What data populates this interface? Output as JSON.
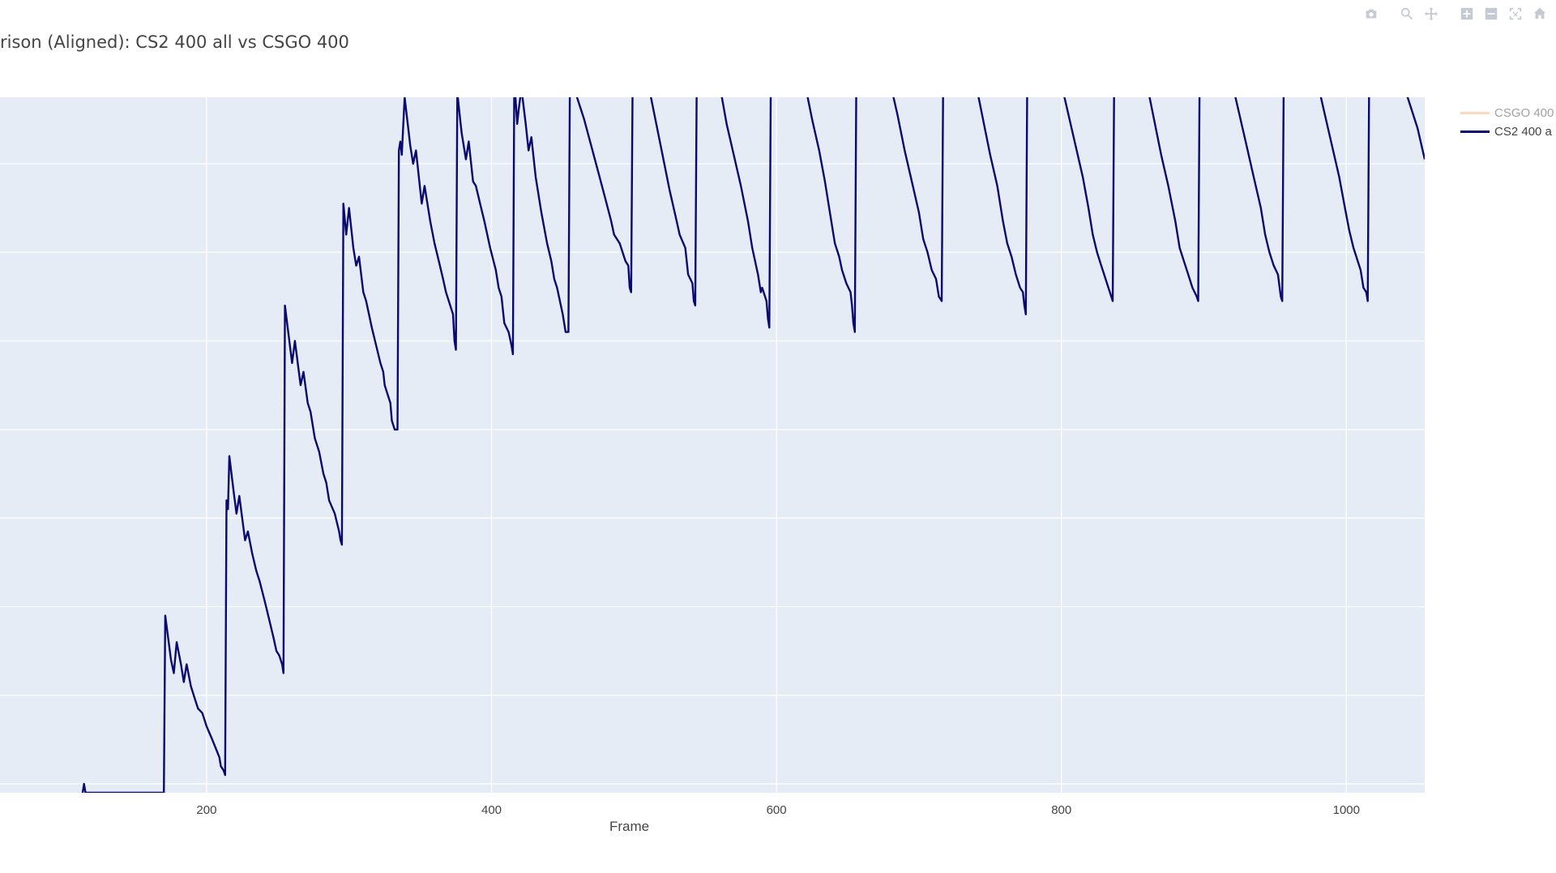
{
  "title": "rison (Aligned): CS2 400 all vs CSGO 400",
  "modebar": {
    "icons": [
      "camera-icon",
      "zoom-icon",
      "pan-icon",
      "zoom-in-icon",
      "zoom-out-icon",
      "autoscale-icon",
      "reset-axes-icon"
    ]
  },
  "legend": {
    "placement": "right",
    "items": [
      {
        "label": "CSGO 400",
        "color": "#f5b783",
        "dimmed": true
      },
      {
        "label": "CS2 400 a",
        "color": "#0a0a6e",
        "dimmed": false
      }
    ]
  },
  "chart_data": {
    "type": "line",
    "title": "rison (Aligned): CS2 400 all vs CSGO 400",
    "xlabel": "Frame",
    "ylabel": "",
    "xlim": [
      55,
      1055
    ],
    "ylim": [
      -0.1,
      7.75
    ],
    "x_ticks": [
      200,
      400,
      600,
      800,
      1000
    ],
    "y_gridlines": [
      0,
      1,
      2,
      3,
      4,
      5,
      6,
      7
    ],
    "grid": true,
    "series": [
      {
        "name": "CS2 400 a",
        "color": "#0a0a6e",
        "points": [
          [
            113,
            -0.1
          ],
          [
            114,
            0.0
          ],
          [
            115,
            -0.1
          ],
          [
            170,
            -0.1
          ],
          [
            171,
            1.9
          ],
          [
            175,
            1.4
          ],
          [
            177,
            1.25
          ],
          [
            179,
            1.6
          ],
          [
            182,
            1.35
          ],
          [
            184,
            1.15
          ],
          [
            186,
            1.35
          ],
          [
            189,
            1.1
          ],
          [
            192,
            0.95
          ],
          [
            194,
            0.85
          ],
          [
            197,
            0.8
          ],
          [
            200,
            0.65
          ],
          [
            204,
            0.5
          ],
          [
            207,
            0.38
          ],
          [
            209,
            0.3
          ],
          [
            210,
            0.2
          ],
          [
            212,
            0.15
          ],
          [
            213,
            0.1
          ],
          [
            214,
            3.2
          ],
          [
            215,
            3.1
          ],
          [
            216,
            3.7
          ],
          [
            219,
            3.3
          ],
          [
            221,
            3.05
          ],
          [
            223,
            3.25
          ],
          [
            227,
            2.75
          ],
          [
            229,
            2.85
          ],
          [
            232,
            2.6
          ],
          [
            235,
            2.4
          ],
          [
            237,
            2.3
          ],
          [
            241,
            2.05
          ],
          [
            244,
            1.85
          ],
          [
            247,
            1.65
          ],
          [
            249,
            1.5
          ],
          [
            251,
            1.45
          ],
          [
            253,
            1.35
          ],
          [
            254,
            1.25
          ],
          [
            255,
            5.4
          ],
          [
            260,
            4.75
          ],
          [
            262,
            5.0
          ],
          [
            266,
            4.5
          ],
          [
            268,
            4.65
          ],
          [
            271,
            4.3
          ],
          [
            273,
            4.2
          ],
          [
            276,
            3.9
          ],
          [
            279,
            3.75
          ],
          [
            282,
            3.5
          ],
          [
            284,
            3.4
          ],
          [
            286,
            3.2
          ],
          [
            290,
            3.05
          ],
          [
            293,
            2.85
          ],
          [
            294,
            2.75
          ],
          [
            295,
            2.7
          ],
          [
            296,
            6.55
          ],
          [
            298,
            6.2
          ],
          [
            300,
            6.5
          ],
          [
            303,
            6.05
          ],
          [
            305,
            5.85
          ],
          [
            307,
            5.95
          ],
          [
            310,
            5.55
          ],
          [
            312,
            5.45
          ],
          [
            316,
            5.15
          ],
          [
            319,
            4.95
          ],
          [
            322,
            4.75
          ],
          [
            324,
            4.65
          ],
          [
            325,
            4.5
          ],
          [
            327,
            4.4
          ],
          [
            329,
            4.3
          ],
          [
            330,
            4.1
          ],
          [
            332,
            4.0
          ],
          [
            334,
            4.0
          ],
          [
            335,
            7.15
          ],
          [
            336,
            7.25
          ],
          [
            337,
            7.1
          ],
          [
            339,
            7.75
          ],
          [
            343,
            7.2
          ],
          [
            345,
            7.0
          ],
          [
            347,
            7.15
          ],
          [
            350,
            6.7
          ],
          [
            351,
            6.55
          ],
          [
            353,
            6.75
          ],
          [
            357,
            6.35
          ],
          [
            360,
            6.1
          ],
          [
            363,
            5.9
          ],
          [
            366,
            5.7
          ],
          [
            368,
            5.55
          ],
          [
            370,
            5.45
          ],
          [
            373,
            5.3
          ],
          [
            374,
            5.0
          ],
          [
            375,
            4.9
          ],
          [
            376,
            7.8
          ],
          [
            379,
            7.35
          ],
          [
            382,
            7.05
          ],
          [
            384,
            7.25
          ],
          [
            387,
            6.8
          ],
          [
            389,
            6.75
          ],
          [
            392,
            6.55
          ],
          [
            395,
            6.35
          ],
          [
            399,
            6.05
          ],
          [
            403,
            5.8
          ],
          [
            405,
            5.6
          ],
          [
            407,
            5.5
          ],
          [
            409,
            5.2
          ],
          [
            412,
            5.1
          ],
          [
            414,
            4.95
          ],
          [
            415,
            4.85
          ],
          [
            416,
            7.95
          ],
          [
            418,
            7.45
          ],
          [
            419,
            7.6
          ],
          [
            421,
            7.85
          ],
          [
            424,
            7.45
          ],
          [
            426,
            7.15
          ],
          [
            428,
            7.3
          ],
          [
            431,
            6.85
          ],
          [
            435,
            6.45
          ],
          [
            439,
            6.1
          ],
          [
            442,
            5.9
          ],
          [
            444,
            5.7
          ],
          [
            446,
            5.6
          ],
          [
            448,
            5.45
          ],
          [
            450,
            5.3
          ],
          [
            452,
            5.1
          ],
          [
            454,
            5.1
          ],
          [
            455,
            7.9
          ],
          [
            460,
            7.75
          ],
          [
            465,
            7.5
          ],
          [
            470,
            7.2
          ],
          [
            475,
            6.9
          ],
          [
            480,
            6.6
          ],
          [
            484,
            6.35
          ],
          [
            486,
            6.2
          ],
          [
            490,
            6.1
          ],
          [
            494,
            5.9
          ],
          [
            496,
            5.85
          ],
          [
            497,
            5.6
          ],
          [
            498,
            5.55
          ],
          [
            499,
            7.9
          ],
          [
            510,
            7.9
          ],
          [
            515,
            7.5
          ],
          [
            520,
            7.1
          ],
          [
            525,
            6.7
          ],
          [
            530,
            6.35
          ],
          [
            532,
            6.2
          ],
          [
            536,
            6.05
          ],
          [
            538,
            5.75
          ],
          [
            541,
            5.65
          ],
          [
            542,
            5.45
          ],
          [
            543,
            5.4
          ],
          [
            544,
            7.9
          ],
          [
            560,
            7.9
          ],
          [
            565,
            7.45
          ],
          [
            570,
            7.1
          ],
          [
            575,
            6.75
          ],
          [
            580,
            6.35
          ],
          [
            583,
            6.05
          ],
          [
            587,
            5.75
          ],
          [
            589,
            5.55
          ],
          [
            590,
            5.6
          ],
          [
            593,
            5.45
          ],
          [
            594,
            5.25
          ],
          [
            595,
            5.15
          ],
          [
            596,
            7.9
          ],
          [
            620,
            7.9
          ],
          [
            625,
            7.5
          ],
          [
            630,
            7.15
          ],
          [
            634,
            6.8
          ],
          [
            638,
            6.4
          ],
          [
            641,
            6.1
          ],
          [
            644,
            5.95
          ],
          [
            646,
            5.8
          ],
          [
            649,
            5.65
          ],
          [
            652,
            5.55
          ],
          [
            653,
            5.4
          ],
          [
            654,
            5.2
          ],
          [
            655,
            5.1
          ],
          [
            656,
            7.9
          ],
          [
            680,
            7.9
          ],
          [
            685,
            7.55
          ],
          [
            690,
            7.15
          ],
          [
            695,
            6.8
          ],
          [
            700,
            6.45
          ],
          [
            703,
            6.15
          ],
          [
            706,
            6.0
          ],
          [
            709,
            5.8
          ],
          [
            712,
            5.7
          ],
          [
            714,
            5.5
          ],
          [
            716,
            5.45
          ],
          [
            717,
            7.9
          ],
          [
            740,
            7.9
          ],
          [
            745,
            7.5
          ],
          [
            750,
            7.1
          ],
          [
            755,
            6.75
          ],
          [
            759,
            6.35
          ],
          [
            762,
            6.1
          ],
          [
            765,
            5.95
          ],
          [
            768,
            5.75
          ],
          [
            771,
            5.6
          ],
          [
            773,
            5.55
          ],
          [
            774,
            5.4
          ],
          [
            775,
            5.3
          ],
          [
            776,
            7.9
          ],
          [
            800,
            7.9
          ],
          [
            805,
            7.55
          ],
          [
            810,
            7.2
          ],
          [
            815,
            6.85
          ],
          [
            819,
            6.5
          ],
          [
            822,
            6.2
          ],
          [
            825,
            6.0
          ],
          [
            828,
            5.85
          ],
          [
            831,
            5.7
          ],
          [
            834,
            5.55
          ],
          [
            836,
            5.45
          ],
          [
            837,
            7.9
          ],
          [
            860,
            7.9
          ],
          [
            865,
            7.5
          ],
          [
            870,
            7.1
          ],
          [
            875,
            6.75
          ],
          [
            880,
            6.35
          ],
          [
            883,
            6.05
          ],
          [
            886,
            5.9
          ],
          [
            889,
            5.75
          ],
          [
            892,
            5.6
          ],
          [
            895,
            5.5
          ],
          [
            896,
            5.45
          ],
          [
            897,
            7.9
          ],
          [
            920,
            7.9
          ],
          [
            925,
            7.55
          ],
          [
            930,
            7.2
          ],
          [
            935,
            6.85
          ],
          [
            940,
            6.5
          ],
          [
            943,
            6.2
          ],
          [
            946,
            6.0
          ],
          [
            949,
            5.85
          ],
          [
            952,
            5.75
          ],
          [
            954,
            5.5
          ],
          [
            955,
            5.45
          ],
          [
            956,
            7.9
          ],
          [
            980,
            7.9
          ],
          [
            985,
            7.55
          ],
          [
            990,
            7.2
          ],
          [
            995,
            6.85
          ],
          [
            999,
            6.5
          ],
          [
            1002,
            6.25
          ],
          [
            1005,
            6.05
          ],
          [
            1008,
            5.9
          ],
          [
            1010,
            5.8
          ],
          [
            1012,
            5.6
          ],
          [
            1014,
            5.55
          ],
          [
            1015,
            5.45
          ],
          [
            1016,
            7.9
          ],
          [
            1040,
            7.9
          ],
          [
            1045,
            7.65
          ],
          [
            1050,
            7.4
          ],
          [
            1055,
            7.05
          ]
        ]
      },
      {
        "name": "CSGO 400",
        "color": "#f5b783",
        "hidden": true,
        "points": []
      }
    ]
  }
}
